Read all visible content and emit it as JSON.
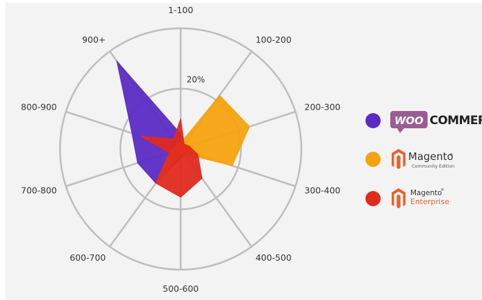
{
  "chart_data": {
    "type": "radar",
    "title": "",
    "categories": [
      "1-100",
      "100-200",
      "200-300",
      "300-400",
      "400-500",
      "500-600",
      "600-700",
      "700-800",
      "800-900",
      "900+"
    ],
    "ring_label": "20%",
    "ring_value": 20,
    "r_max": 40,
    "grid": true,
    "legend_position": "right",
    "series": [
      {
        "name": "WooCommerce",
        "color": "#5b2bc4",
        "values": [
          5,
          2,
          2,
          2,
          2,
          3,
          14,
          15,
          17,
          36
        ]
      },
      {
        "name": "Magento Community Edition",
        "color": "#f5a20f",
        "values": [
          2,
          22,
          24,
          18,
          2,
          2,
          14,
          4,
          2,
          2
        ]
      },
      {
        "name": "Magento Enterprise",
        "color": "#e02a1e",
        "values": [
          10,
          2,
          3,
          6,
          12,
          16,
          14,
          4,
          14,
          4
        ]
      }
    ]
  },
  "legend": {
    "woo_badge": "WOO",
    "woo_word": "COMMERCE",
    "magento_ce_word": "Magento",
    "magento_ce_sub": "Community Edition",
    "magento_ee_word": "Magento",
    "magento_ee_sub": "Enterprise",
    "magento_icon": "magento-logo-icon",
    "woo_icon": "woocommerce-logo-icon"
  }
}
